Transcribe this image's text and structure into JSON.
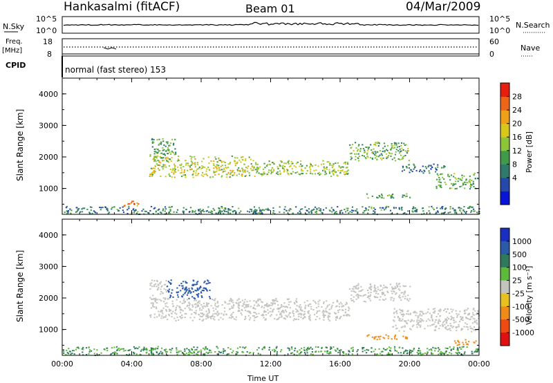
{
  "header": {
    "station": "Hankasalmi (fitACF)",
    "beam": "Beam 01",
    "date": "04/Mar/2009"
  },
  "top_panels": {
    "nsky_label": "N.Sky",
    "nsky_ticks": [
      "10^5",
      "10^0"
    ],
    "nsearch_label": "N.Search",
    "nsearch_ticks": [
      "10^5",
      "10^0"
    ],
    "freq_label": "Freq.",
    "freq_unit": "[MHz]",
    "freq_ticks": [
      "18",
      "8"
    ],
    "nave_label": "Nave",
    "nave_ticks": [
      "60",
      "0"
    ],
    "cpid_label": "CPID",
    "cpid_text": "normal (fast stereo) 153"
  },
  "colorbars": {
    "power": {
      "label": "Power [dB]",
      "ticks": [
        "28",
        "24",
        "20",
        "16",
        "12",
        "8",
        "4"
      ],
      "colors": [
        "#0a14d8",
        "#2449a8",
        "#2f7a6a",
        "#3f9a4a",
        "#8cc43a",
        "#d8c81c",
        "#f0a018",
        "#ee6418",
        "#e61e10"
      ]
    },
    "velocity": {
      "label": "Velocity [m s⁻¹]",
      "ticks": [
        "1000",
        "500",
        "100",
        "25",
        "-25",
        "-100",
        "-500",
        "-1000"
      ],
      "colors": [
        "#1a2ec0",
        "#2a5aa8",
        "#2f7a5c",
        "#5cbc3a",
        "#c4c4be",
        "#e8c020",
        "#f08a18",
        "#ee4a12",
        "#e01010"
      ]
    }
  },
  "chart_data": [
    {
      "type": "heatmap",
      "name": "power",
      "ylabel": "Slant Range [km]",
      "yticks": [
        "4000",
        "3000",
        "2000",
        "1000"
      ],
      "ylim": [
        180,
        4500
      ],
      "xlim": [
        "00:00",
        "24:00"
      ],
      "blobs": [
        {
          "t0": 5.0,
          "t1": 11.0,
          "r0": 1350,
          "r1": 2050,
          "value": 18
        },
        {
          "t0": 11.0,
          "t1": 16.5,
          "r0": 1400,
          "r1": 1900,
          "value": 16
        },
        {
          "t0": 16.5,
          "t1": 20.0,
          "r0": 1900,
          "r1": 2500,
          "value": 14
        },
        {
          "t0": 5.0,
          "t1": 6.5,
          "r0": 1900,
          "r1": 2600,
          "value": 12
        },
        {
          "t0": 17.5,
          "t1": 20.0,
          "r0": 700,
          "r1": 850,
          "value": 12
        },
        {
          "t0": 21.5,
          "t1": 23.9,
          "r0": 1000,
          "r1": 1500,
          "value": 14
        },
        {
          "t0": 19.5,
          "t1": 22.0,
          "r0": 1500,
          "r1": 1800,
          "value": 8
        },
        {
          "t0": 0.0,
          "t1": 24.0,
          "r0": 200,
          "r1": 450,
          "value": 10
        },
        {
          "t0": 3.5,
          "t1": 4.5,
          "r0": 450,
          "r1": 620,
          "value": 24
        }
      ]
    },
    {
      "type": "heatmap",
      "name": "velocity",
      "ylabel": "Slant Range [km]",
      "yticks": [
        "4000",
        "3000",
        "2000",
        "1000"
      ],
      "ylim": [
        180,
        4500
      ],
      "xlim": [
        "00:00",
        "24:00"
      ],
      "xticks": [
        "00:00",
        "04:00",
        "08:00",
        "12:00",
        "16:00",
        "20:00",
        "00:00"
      ],
      "xlabel": "Time UT",
      "blobs": [
        {
          "t0": 5.0,
          "t1": 16.5,
          "r0": 1300,
          "r1": 2000,
          "value": 0
        },
        {
          "t0": 16.5,
          "t1": 20.0,
          "r0": 1900,
          "r1": 2500,
          "value": 0
        },
        {
          "t0": 5.0,
          "t1": 6.0,
          "r0": 1900,
          "r1": 2600,
          "value": 0
        },
        {
          "t0": 6.0,
          "t1": 8.5,
          "r0": 2000,
          "r1": 2600,
          "value": 400
        },
        {
          "t0": 19.0,
          "t1": 24.0,
          "r0": 950,
          "r1": 1700,
          "value": 0
        },
        {
          "t0": 17.5,
          "t1": 20.0,
          "r0": 700,
          "r1": 850,
          "value": -300
        },
        {
          "t0": 22.5,
          "t1": 23.8,
          "r0": 500,
          "r1": 700,
          "value": -200
        },
        {
          "t0": 0.0,
          "t1": 24.0,
          "r0": 200,
          "r1": 480,
          "value": 60
        }
      ]
    }
  ]
}
